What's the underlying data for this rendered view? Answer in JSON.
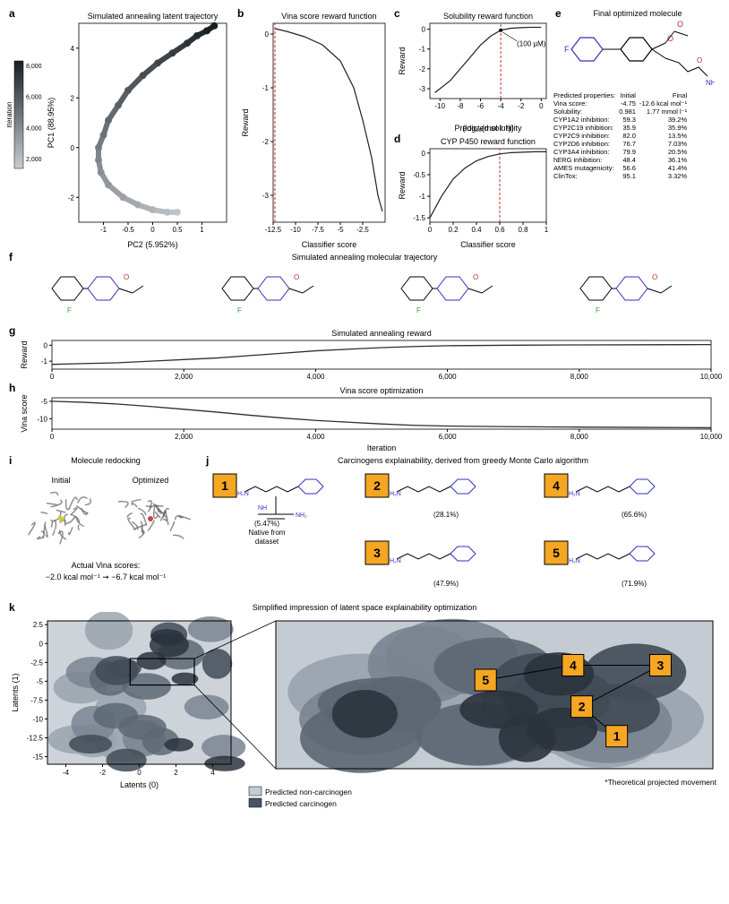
{
  "a": {
    "title": "Simulated annealing latent trajectory",
    "xlabel": "PC2 (5.952%)",
    "ylabel": "PC1 (88.95%)",
    "colorbar_label": "Iteration",
    "colorbar_ticks": [
      "8,000",
      "6,000",
      "4,000",
      "2,000"
    ],
    "xlim": [
      -1.5,
      1.5
    ],
    "ylim": [
      -3,
      5
    ],
    "xticks": [
      -1.0,
      -0.5,
      0.0,
      0.5,
      1.0
    ],
    "yticks": [
      -2,
      0,
      2,
      4
    ],
    "traj_color_start": "#c8cdd2",
    "traj_color_end": "#1a1f24",
    "background": "#ffffff",
    "trajectory": [
      [
        0.5,
        -2.6
      ],
      [
        0.3,
        -2.6
      ],
      [
        0.0,
        -2.5
      ],
      [
        -0.3,
        -2.3
      ],
      [
        -0.6,
        -2.0
      ],
      [
        -0.9,
        -1.5
      ],
      [
        -1.05,
        -1.0
      ],
      [
        -1.1,
        -0.5
      ],
      [
        -1.1,
        0.0
      ],
      [
        -1.0,
        0.5
      ],
      [
        -0.9,
        1.1
      ],
      [
        -0.7,
        1.7
      ],
      [
        -0.5,
        2.3
      ],
      [
        -0.2,
        2.9
      ],
      [
        0.1,
        3.4
      ],
      [
        0.4,
        3.8
      ],
      [
        0.7,
        4.2
      ],
      [
        0.9,
        4.5
      ],
      [
        1.1,
        4.7
      ],
      [
        1.25,
        4.9
      ]
    ]
  },
  "b": {
    "title": "Vina score reward function",
    "xlabel": "Classifier score",
    "ylabel": "Reward",
    "xlim": [
      -12.5,
      0
    ],
    "ylim": [
      -3.5,
      0.2
    ],
    "xticks": [
      -12.5,
      -10.0,
      -7.5,
      -5.0,
      -2.5
    ],
    "yticks": [
      0,
      -1.0,
      -2.0,
      -3.0
    ],
    "vline": -12.3,
    "vline_color": "#d62728",
    "curve": [
      [
        -12.3,
        0.1
      ],
      [
        -11,
        0.05
      ],
      [
        -9,
        -0.05
      ],
      [
        -7,
        -0.2
      ],
      [
        -5,
        -0.5
      ],
      [
        -3.5,
        -1.0
      ],
      [
        -2.5,
        -1.6
      ],
      [
        -1.5,
        -2.3
      ],
      [
        -0.8,
        -3.0
      ],
      [
        -0.3,
        -3.3
      ]
    ],
    "line_color": "#202020"
  },
  "c": {
    "title": "Solubility reward function",
    "xlabel": "Predicted solubility\n(log₁₀(mol l⁻¹))",
    "ylabel": "Reward",
    "xlim": [
      -11,
      0.5
    ],
    "ylim": [
      -3.5,
      0.3
    ],
    "xticks": [
      -10,
      -8,
      -6,
      -4,
      -2,
      0
    ],
    "yticks": [
      0,
      -1,
      -2,
      -3
    ],
    "vline": -4,
    "vline_color": "#d62728",
    "annot": "(100 µM)",
    "curve": [
      [
        -10.5,
        -3.2
      ],
      [
        -9,
        -2.6
      ],
      [
        -8,
        -2.0
      ],
      [
        -7,
        -1.4
      ],
      [
        -6,
        -0.8
      ],
      [
        -5,
        -0.35
      ],
      [
        -4,
        -0.05
      ],
      [
        -3,
        0.05
      ],
      [
        -2,
        0.08
      ],
      [
        -1,
        0.1
      ],
      [
        0,
        0.1
      ]
    ],
    "line_color": "#202020"
  },
  "d": {
    "title": "CYP P450 reward function",
    "xlabel": "Classifier score",
    "ylabel": "Reward",
    "xlim": [
      0,
      1
    ],
    "ylim": [
      -1.6,
      0.1
    ],
    "xticks": [
      0,
      0.2,
      0.4,
      0.6,
      0.8,
      1.0
    ],
    "yticks": [
      0,
      -0.5,
      -1.0,
      -1.5
    ],
    "vline": 0.6,
    "vline_color": "#d62728",
    "curve": [
      [
        0,
        -1.5
      ],
      [
        0.1,
        -1.0
      ],
      [
        0.2,
        -0.6
      ],
      [
        0.3,
        -0.35
      ],
      [
        0.4,
        -0.18
      ],
      [
        0.5,
        -0.08
      ],
      [
        0.6,
        -0.02
      ],
      [
        0.7,
        0.01
      ],
      [
        0.8,
        0.02
      ],
      [
        0.9,
        0.03
      ],
      [
        1.0,
        0.03
      ]
    ],
    "line_color": "#202020"
  },
  "e": {
    "title": "Final optimized molecule",
    "table_header": [
      "Predicted properties:",
      "Initial",
      "Final"
    ],
    "rows": [
      [
        "Vina score:",
        "-4.75",
        "-12.6 kcal mol⁻¹"
      ],
      [
        "Solubility:",
        "0.981",
        "1.77 mmol l⁻¹"
      ],
      [
        "CYP1A2 inhibition:",
        "59.3",
        "39.2%"
      ],
      [
        "CYP2C19 inhibition:",
        "35.9",
        "35.9%"
      ],
      [
        "CYP2C9 inhibition:",
        "82.0",
        "13.5%"
      ],
      [
        "CYP2D6 inhibition:",
        "76.7",
        "7.03%"
      ],
      [
        "CYP3A4 inhibition:",
        "79.9",
        "20.5%"
      ],
      [
        "hERG inhibition:",
        "48.4",
        "36.1%"
      ],
      [
        "AMES mutagenicity:",
        "56.6",
        "41.4%"
      ],
      [
        "ClinTox:",
        "95.1",
        "3.32%"
      ]
    ]
  },
  "f": {
    "title": "Simulated annealing molecular trajectory"
  },
  "g": {
    "title": "Simulated annealing reward",
    "xlabel": "",
    "ylabel": "Reward",
    "xlim": [
      0,
      10000
    ],
    "ylim": [
      -1.5,
      0.3
    ],
    "xticks": [
      0,
      2000,
      4000,
      6000,
      8000,
      10000
    ],
    "xtick_labels": [
      "0",
      "2,000",
      "4,000",
      "6,000",
      "8,000",
      "10,000"
    ],
    "yticks": [
      0,
      -1
    ],
    "series": [
      [
        0,
        -1.2
      ],
      [
        500,
        -1.15
      ],
      [
        1000,
        -1.1
      ],
      [
        1500,
        -1.0
      ],
      [
        2000,
        -0.9
      ],
      [
        2500,
        -0.8
      ],
      [
        3000,
        -0.65
      ],
      [
        3500,
        -0.5
      ],
      [
        4000,
        -0.35
      ],
      [
        4500,
        -0.25
      ],
      [
        5000,
        -0.15
      ],
      [
        5500,
        -0.08
      ],
      [
        6000,
        -0.03
      ],
      [
        7000,
        0.0
      ],
      [
        8000,
        0.02
      ],
      [
        9000,
        0.03
      ],
      [
        10000,
        0.04
      ]
    ],
    "line_color": "#2a2e35"
  },
  "h": {
    "title": "Vina score optimization",
    "xlabel": "Iteration",
    "ylabel": "Vina score",
    "xlim": [
      0,
      10000
    ],
    "ylim": [
      -13,
      -4
    ],
    "xticks": [
      0,
      2000,
      4000,
      6000,
      8000,
      10000
    ],
    "xtick_labels": [
      "0",
      "2,000",
      "4,000",
      "6,000",
      "8,000",
      "10,000"
    ],
    "yticks": [
      -5,
      -10
    ],
    "series": [
      [
        0,
        -5.0
      ],
      [
        500,
        -5.3
      ],
      [
        1000,
        -5.8
      ],
      [
        1500,
        -6.5
      ],
      [
        2000,
        -7.3
      ],
      [
        2500,
        -8.1
      ],
      [
        3000,
        -9.0
      ],
      [
        3500,
        -9.8
      ],
      [
        4000,
        -10.5
      ],
      [
        4500,
        -11.0
      ],
      [
        5000,
        -11.5
      ],
      [
        5500,
        -11.9
      ],
      [
        6000,
        -12.1
      ],
      [
        7000,
        -12.3
      ],
      [
        8000,
        -12.4
      ],
      [
        9000,
        -12.5
      ],
      [
        10000,
        -12.6
      ]
    ],
    "line_color": "#2a2e35"
  },
  "i": {
    "title": "Molecule redocking",
    "left_label": "Initial",
    "right_label": "Optimized",
    "caption1": "Actual Vina scores:",
    "caption2": "−2.0 kcal mol⁻¹ ➞ −6.7 kcal mol⁻¹"
  },
  "j": {
    "title": "Carcinogens explainability, derived from greedy Monte Carlo algorithm",
    "items": [
      {
        "n": "1",
        "pct": "(5.47%)",
        "note": "Native from\ndataset"
      },
      {
        "n": "2",
        "pct": "(28.1%)"
      },
      {
        "n": "3",
        "pct": "(47.9%)"
      },
      {
        "n": "4",
        "pct": "(65.6%)"
      },
      {
        "n": "5",
        "pct": "(71.9%)"
      }
    ]
  },
  "k": {
    "title": "Simplified impression of latent space explainability optimization",
    "xlabel": "Latents (0)",
    "ylabel": "Latents (1)",
    "xlim": [
      -5,
      5
    ],
    "ylim": [
      -16,
      3
    ],
    "xticks": [
      -4,
      -2,
      0,
      2,
      4
    ],
    "yticks": [
      2.5,
      0,
      -2.5,
      -5.0,
      -7.5,
      -10.0,
      -12.5,
      -15.0
    ],
    "legend": [
      "Predicted non-carcinogen",
      "Predicted carcinogen"
    ],
    "legend_colors": [
      "#c4cbd2",
      "#4a5560"
    ],
    "footnote": "*Theoretical projected movement",
    "zoom_positions": {
      "1": [
        0.78,
        0.78
      ],
      "2": [
        0.7,
        0.58
      ],
      "3": [
        0.88,
        0.3
      ],
      "4": [
        0.68,
        0.3
      ],
      "5": [
        0.48,
        0.4
      ]
    }
  }
}
